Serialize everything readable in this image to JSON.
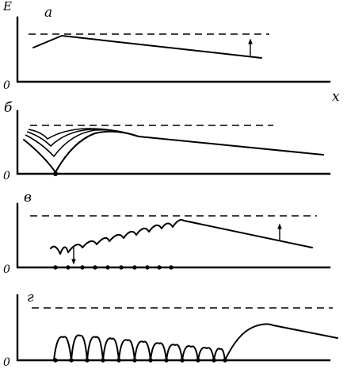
{
  "labels": {
    "y_axis": "E",
    "x_axis": "x",
    "origin": "0"
  },
  "panels": [
    {
      "id": "a",
      "letter": "a"
    },
    {
      "id": "b",
      "letter": "б"
    },
    {
      "id": "v",
      "letter": "в"
    },
    {
      "id": "g",
      "letter": "г"
    }
  ]
}
